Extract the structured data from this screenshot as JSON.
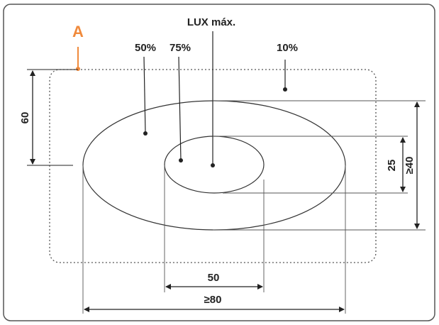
{
  "labels": {
    "point_a": "A",
    "lux_max": "LUX máx.",
    "pct_50": "50%",
    "pct_75": "75%",
    "pct_10": "10%"
  },
  "dimensions": {
    "height_60": "60",
    "inner_25": "25",
    "outer_40": "≥40",
    "inner_50": "50",
    "outer_80": "≥80"
  },
  "colors": {
    "accent": "#f08a3c",
    "line": "#333333",
    "border": "#555555"
  }
}
